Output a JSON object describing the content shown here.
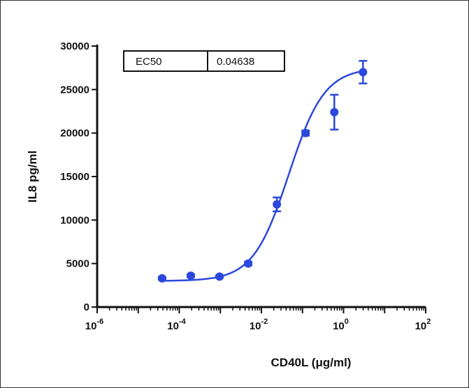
{
  "chart_data": {
    "type": "scatter",
    "xlabel": "CD40L (μg/ml)",
    "ylabel": "IL8 pg/ml",
    "xscale": "log",
    "xlim_log10": [
      -6,
      2
    ],
    "ylim": [
      0,
      30000
    ],
    "x_ticks": [
      {
        "base": "10",
        "exp": "-6"
      },
      {
        "base": "10",
        "exp": "-4"
      },
      {
        "base": "10",
        "exp": "-2"
      },
      {
        "base": "10",
        "exp": "0"
      },
      {
        "base": "10",
        "exp": "2"
      }
    ],
    "y_ticks": [
      0,
      5000,
      10000,
      15000,
      20000,
      25000,
      30000
    ],
    "y_tick_labels": [
      "0",
      "5000",
      "10000",
      "15000",
      "20000",
      "25000",
      "30000"
    ],
    "points": [
      {
        "x": 3.81e-05,
        "y": 3300,
        "err": 150
      },
      {
        "x": 0.000191,
        "y": 3600,
        "err": 150
      },
      {
        "x": 0.000954,
        "y": 3500,
        "err": 150
      },
      {
        "x": 0.00477,
        "y": 5000,
        "err": 200
      },
      {
        "x": 0.0238,
        "y": 11800,
        "err": 800
      },
      {
        "x": 0.119,
        "y": 20000,
        "err": 300
      },
      {
        "x": 0.596,
        "y": 22400,
        "err": 2000
      },
      {
        "x": 2.98,
        "y": 27000,
        "err": 1300
      }
    ],
    "fit": {
      "model": "4PL",
      "bottom": 3000,
      "top": 27500,
      "ec50": 0.04638,
      "hill": 1.0
    },
    "annotation_table": {
      "label": "EC50",
      "value": "0.04638"
    },
    "color": "#2b48dc"
  }
}
